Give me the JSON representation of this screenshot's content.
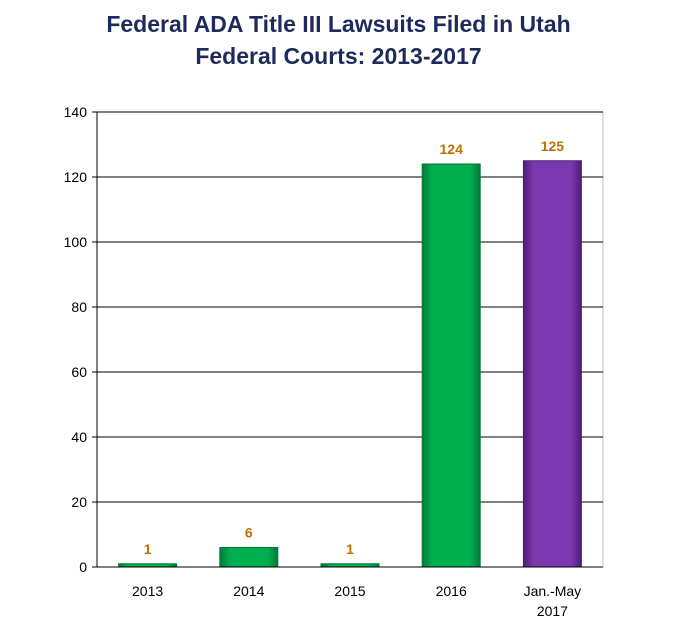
{
  "chart_data": {
    "type": "bar",
    "title_line1": "Federal ADA Title III Lawsuits Filed in Utah",
    "title_line2": "Federal Courts:  2013-2017",
    "categories": [
      {
        "line1": "2013",
        "line2": ""
      },
      {
        "line1": "2014",
        "line2": ""
      },
      {
        "line1": "2015",
        "line2": ""
      },
      {
        "line1": "2016",
        "line2": ""
      },
      {
        "line1": "Jan.-May",
        "line2": "2017"
      }
    ],
    "values": [
      1,
      6,
      1,
      124,
      125
    ],
    "bar_colors": [
      "#00b050",
      "#00b050",
      "#00b050",
      "#00b050",
      "#7030a0"
    ],
    "data_label_color": "#c07000",
    "ylim": [
      0,
      140
    ],
    "yticks": [
      0,
      20,
      40,
      60,
      80,
      100,
      120,
      140
    ],
    "grid": true,
    "legend": "none"
  }
}
